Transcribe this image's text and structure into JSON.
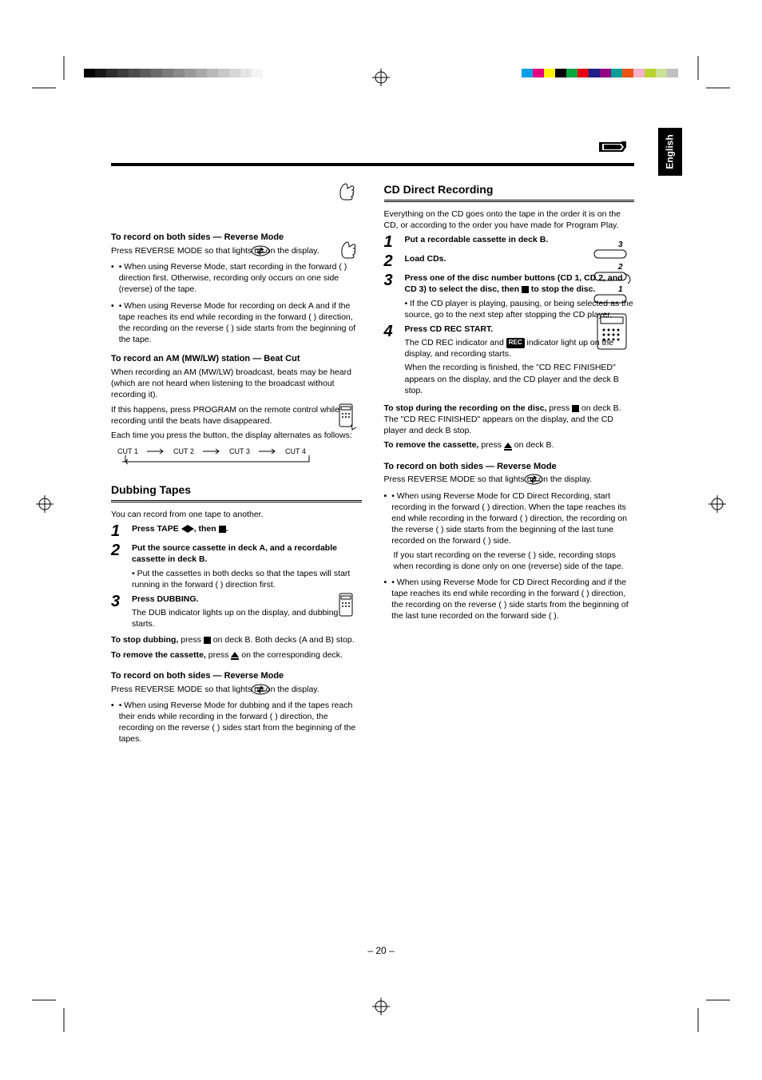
{
  "page_number": "– 20 –",
  "language_tab": "English",
  "grayscale_bar_colors": [
    "#000000",
    "#1a1a1a",
    "#2e2e2e",
    "#3d3d3d",
    "#4d4d4d",
    "#5c5c5c",
    "#6b6b6b",
    "#7a7a7a",
    "#8a8a8a",
    "#999999",
    "#a8a8a8",
    "#b8b8b8",
    "#c7c7c7",
    "#d6d6d6",
    "#e5e5e5",
    "#f5f5f5"
  ],
  "color_bar_colors": [
    "#00a0e9",
    "#e4007f",
    "#fff100",
    "#000000",
    "#00a73c",
    "#e60012",
    "#1d2088",
    "#920783",
    "#009e96",
    "#ea5514",
    "#f6b1cb",
    "#b9d432",
    "#cce198",
    "#c0c0c0"
  ],
  "left": {
    "p1": " ",
    "p2": " ",
    "p3": " ",
    "p4": " ",
    "subhead1": "To record on both sides — Reverse Mode",
    "reverse_press": "Press REVERSE MODE so that                lights up on the display.",
    "reverse_body1": "• When using Reverse Mode, start recording in the forward (   ) direction first. Otherwise, recording only occurs on one side (reverse) of the tape.",
    "reverse_body2": "• When using Reverse Mode for recording on deck A and if the tape reaches its end while recording in the forward (   ) direction, the recording on the reverse (   ) side starts from the beginning of the tape.",
    "subhead2": "To record an AM (MW/LW) station — Beat Cut",
    "beat_body1": "When recording an AM (MW/LW) broadcast, beats may be heard (which are not heard when listening to the broadcast without recording it).",
    "beat_body2": "If this happens, press PROGRAM on the remote control while recording until the beats have disappeared.",
    "beat_body3": "Each time you press the button, the display alternates as follows:",
    "beat_labels": [
      "CUT 1",
      "CUT 2",
      "CUT 3",
      "CUT 4"
    ],
    "dub_heading": "Dubbing Tapes",
    "dub_intro": "You can record from one tape to another.",
    "dub_step1": "Press TAPE       , then   .",
    "dub_step2": "Put the source cassette in deck A, and a recordable cassette in deck B.",
    "dub_step2b": "• Put the cassettes in both decks so that the tapes will start running in the forward (   ) direction first.",
    "dub_step3": "Press DUBBING.",
    "dub_step3a": "The DUB indicator lights up on the display, and dubbing starts.",
    "dub_stop": "To stop dubbing, press    on deck B. Both decks (A and B) stop.",
    "dub_eject": "To remove the cassette, press    on the corresponding deck.",
    "subhead3": "To record on both sides — Reverse Mode",
    "reverse_press2": "Press REVERSE MODE so that                lights up on the display.",
    "reverse_body3": "• When using Reverse Mode for dubbing and if the tapes reach their ends while recording in the forward (   ) direction, the recording on the reverse (   ) sides start from the beginning of the tapes."
  },
  "right": {
    "cd_heading": "CD Direct Recording",
    "cd_intro": "Everything on the CD goes onto the tape in the order it is on the CD, or according to the order you have made for Program Play.",
    "step1": "Put a recordable cassette in deck B.",
    "step2": "Load CDs.",
    "step3": "Press one of the disc number buttons (CD 1, CD 2, and CD 3) to select the disc, then    to stop the disc.",
    "step3b": "• If the CD player is playing, pausing, or being selected as the source, go to the next step after stopping the CD player.",
    "step4": "Press CD REC START.",
    "step4a": "The CD REC indicator and       indicator light up on the display, and recording starts.",
    "step4b": "When the recording is finished, the \"CD REC FINISHED\" appears on the display, and the CD player and the deck B stop.",
    "cd_stop": "To stop during the recording on the disc, press    on deck B. The \"CD REC FINISHED\" appears on the display, and the CD player and deck B stop.",
    "cd_eject": "To remove the cassette, press    on deck B.",
    "subhead4": "To record on both sides — Reverse Mode",
    "reverse_press3": "Press REVERSE MODE so that                 lights up on the display.",
    "rev4_a": "• When using Reverse Mode for CD Direct Recording, start recording in the forward (   ) direction. When the tape reaches its end while recording in the forward (   ) direction, the recording on the reverse (   ) side starts from the beginning of the last tune recorded on the forward (   ) side.",
    "rev4_b": "If you start recording on the reverse (   ) side, recording stops when recording is done only on one (reverse) side of the tape.",
    "rev4_c": "• When using Reverse Mode for CD Direct Recording and if the tape reaches its end while recording in the forward (   ) direction, the recording on the reverse (   ) side starts from the beginning of the last tune recorded on the forward side (   )."
  }
}
